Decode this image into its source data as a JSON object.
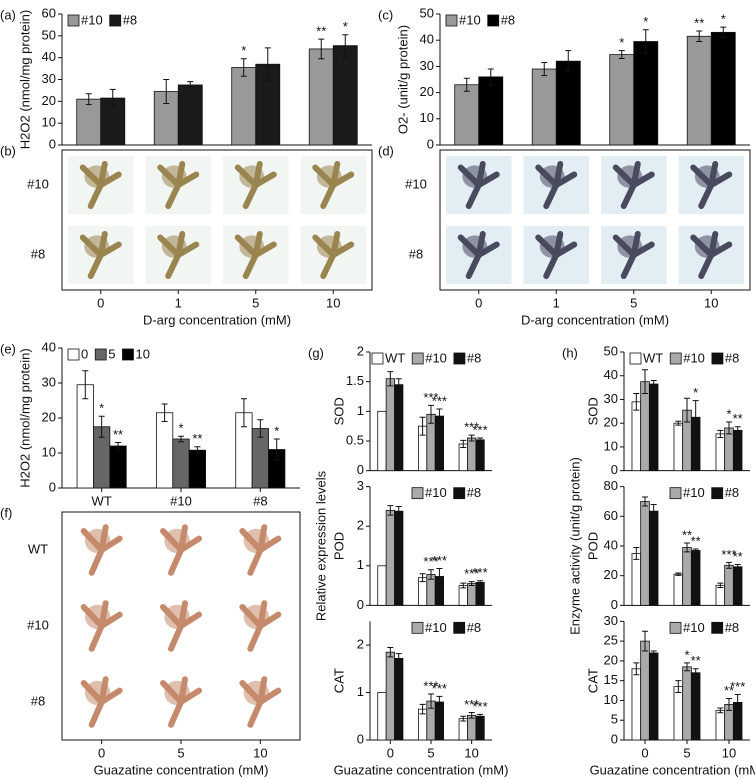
{
  "chart_data": [
    {
      "type": "bar",
      "panel": "(a)",
      "ylabel": "H2O2 (nmol/mg protein)",
      "categories": [
        "0",
        "1",
        "5",
        "10"
      ],
      "ylim": [
        0,
        60
      ],
      "yticks": [
        0,
        10,
        20,
        30,
        40,
        50,
        60
      ],
      "legend": true,
      "series": [
        {
          "name": "#10",
          "color": "#999999",
          "values": [
            21,
            24.5,
            35.5,
            44
          ],
          "errors": [
            2.5,
            5.5,
            4,
            4.5
          ],
          "significance": [
            null,
            null,
            "*",
            "**"
          ]
        },
        {
          "name": "#8",
          "color": "#1a1a1a",
          "values": [
            21.5,
            27.5,
            37,
            45.5
          ],
          "errors": [
            4,
            1.5,
            7.5,
            5
          ],
          "significance": [
            null,
            null,
            null,
            "*"
          ]
        }
      ]
    },
    {
      "type": "image-grid",
      "panel": "(b)",
      "rows": [
        "#10",
        "#8"
      ],
      "categories": [
        "0",
        "1",
        "5",
        "10"
      ],
      "xlabel": "D-arg concentration (mM)",
      "tile_color": "#f2f6f2",
      "plant_color": "#9a8550"
    },
    {
      "type": "bar",
      "panel": "(c)",
      "ylabel": "O2- (unit/g protein)",
      "categories": [
        "0",
        "1",
        "5",
        "10"
      ],
      "ylim": [
        0,
        50
      ],
      "yticks": [
        0,
        10,
        20,
        30,
        40,
        50
      ],
      "legend": true,
      "series": [
        {
          "name": "#10",
          "color": "#999999",
          "values": [
            23,
            29,
            34.5,
            41.5
          ],
          "errors": [
            2.5,
            2.5,
            1.5,
            2
          ],
          "significance": [
            null,
            null,
            "*",
            "**"
          ]
        },
        {
          "name": "#8",
          "color": "#000000",
          "values": [
            26,
            32,
            39.5,
            43
          ],
          "errors": [
            3,
            4,
            4.5,
            2
          ],
          "significance": [
            null,
            null,
            "*",
            "*"
          ]
        }
      ]
    },
    {
      "type": "image-grid",
      "panel": "(d)",
      "rows": [
        "#10",
        "#8"
      ],
      "categories": [
        "0",
        "1",
        "5",
        "10"
      ],
      "xlabel": "D-arg concentration (mM)",
      "tile_color": "#e2eef4",
      "plant_color": "#4a4a5e"
    },
    {
      "type": "bar",
      "panel": "(e)",
      "ylabel": "H2O2 (nmol/mg protein)",
      "categories": [
        "WT",
        "#10",
        "#8"
      ],
      "ylim": [
        0,
        40
      ],
      "yticks": [
        0,
        10,
        20,
        30,
        40
      ],
      "legend": true,
      "series": [
        {
          "name": "0",
          "color": "#ffffff",
          "values": [
            29.5,
            21.5,
            21.5
          ],
          "errors": [
            4,
            2.5,
            4
          ],
          "significance": [
            null,
            null,
            null
          ]
        },
        {
          "name": "5",
          "color": "#666666",
          "values": [
            17.5,
            14,
            17
          ],
          "errors": [
            3,
            0.8,
            2.5
          ],
          "significance": [
            "*",
            "*",
            null
          ]
        },
        {
          "name": "10",
          "color": "#000000",
          "values": [
            12,
            10.8,
            11
          ],
          "errors": [
            1,
            1,
            3
          ],
          "significance": [
            "**",
            "**",
            "*"
          ]
        }
      ]
    },
    {
      "type": "image-grid",
      "panel": "(f)",
      "rows": [
        "WT",
        "#10",
        "#8"
      ],
      "categories": [
        "0",
        "5",
        "10"
      ],
      "xlabel": "Guazatine concentration (mM)",
      "tile_color": "#ffffff",
      "plant_color": "#c58a6c"
    },
    {
      "type": "bar-panels",
      "panel": "(g)",
      "ylabel": "Relative expression levels",
      "xlabel": "Guazatine concentration (mM)",
      "categories": [
        "0",
        "5",
        "10"
      ],
      "series_names": [
        "WT",
        "#10",
        "#8"
      ],
      "colors": [
        "#ffffff",
        "#aaaaaa",
        "#111111"
      ],
      "subplots": [
        {
          "label": "SOD",
          "ylim": [
            0,
            2
          ],
          "yticks": [
            0,
            0.5,
            1,
            1.5,
            2
          ],
          "in_legend": [
            true,
            true,
            true
          ],
          "series": [
            {
              "values": [
                1,
                0.75,
                0.45
              ],
              "errors": [
                0,
                0.15,
                0.06
              ],
              "significance": [
                null,
                null,
                null
              ]
            },
            {
              "values": [
                1.55,
                0.95,
                0.55
              ],
              "errors": [
                0.12,
                0.15,
                0.05
              ],
              "significance": [
                null,
                "***",
                "***"
              ]
            },
            {
              "values": [
                1.45,
                0.92,
                0.52
              ],
              "errors": [
                0.1,
                0.12,
                0.03
              ],
              "significance": [
                null,
                "***",
                "***"
              ]
            }
          ]
        },
        {
          "label": "POD",
          "ylim": [
            0,
            3
          ],
          "yticks": [
            0,
            1,
            2,
            3
          ],
          "in_legend": [
            false,
            true,
            true
          ],
          "series": [
            {
              "values": [
                1,
                0.7,
                0.5
              ],
              "errors": [
                0,
                0.1,
                0.06
              ],
              "significance": [
                null,
                null,
                null
              ]
            },
            {
              "values": [
                2.4,
                0.78,
                0.55
              ],
              "errors": [
                0.12,
                0.12,
                0.05
              ],
              "significance": [
                null,
                "***",
                "***"
              ]
            },
            {
              "values": [
                2.38,
                0.73,
                0.58
              ],
              "errors": [
                0.12,
                0.2,
                0.04
              ],
              "significance": [
                null,
                "***",
                "***"
              ]
            }
          ]
        },
        {
          "label": "CAT",
          "ylim": [
            0,
            2.5
          ],
          "yticks": [
            0,
            1,
            2
          ],
          "in_legend": [
            false,
            true,
            true
          ],
          "series": [
            {
              "values": [
                1,
                0.65,
                0.45
              ],
              "errors": [
                0,
                0.1,
                0.05
              ],
              "significance": [
                null,
                null,
                null
              ]
            },
            {
              "values": [
                1.85,
                0.82,
                0.52
              ],
              "errors": [
                0.1,
                0.15,
                0.06
              ],
              "significance": [
                null,
                "***",
                "***"
              ]
            },
            {
              "values": [
                1.72,
                0.8,
                0.5
              ],
              "errors": [
                0.1,
                0.12,
                0.04
              ],
              "significance": [
                null,
                "***",
                "***"
              ]
            }
          ]
        }
      ]
    },
    {
      "type": "bar-panels",
      "panel": "(h)",
      "ylabel": "Enzyme activity (unit/g protein)",
      "xlabel": "Guazatine concentration (mM)",
      "categories": [
        "0",
        "5",
        "10"
      ],
      "series_names": [
        "WT",
        "#10",
        "#8"
      ],
      "colors": [
        "#ffffff",
        "#aaaaaa",
        "#111111"
      ],
      "subplots": [
        {
          "label": "SOD",
          "ylim": [
            0,
            50
          ],
          "yticks": [
            0,
            10,
            20,
            30,
            40,
            50
          ],
          "in_legend": [
            true,
            true,
            true
          ],
          "series": [
            {
              "values": [
                29,
                20,
                15.5
              ],
              "errors": [
                3.5,
                0.8,
                1.5
              ],
              "significance": [
                null,
                null,
                null
              ]
            },
            {
              "values": [
                37.5,
                25.5,
                18
              ],
              "errors": [
                5,
                5,
                2.5
              ],
              "significance": [
                null,
                null,
                "*"
              ]
            },
            {
              "values": [
                36.5,
                22.5,
                17
              ],
              "errors": [
                1.5,
                7,
                1.5
              ],
              "significance": [
                null,
                "*",
                "**"
              ]
            }
          ]
        },
        {
          "label": "POD",
          "ylim": [
            0,
            80
          ],
          "yticks": [
            0,
            20,
            40,
            60,
            80
          ],
          "in_legend": [
            false,
            true,
            true
          ],
          "series": [
            {
              "values": [
                35,
                21,
                13.5
              ],
              "errors": [
                4,
                0.8,
                1.5
              ],
              "significance": [
                null,
                null,
                null
              ]
            },
            {
              "values": [
                70,
                39,
                27
              ],
              "errors": [
                3,
                3,
                2
              ],
              "significance": [
                null,
                "**",
                "***"
              ]
            },
            {
              "values": [
                63.5,
                37,
                26
              ],
              "errors": [
                4.5,
                1,
                1.5
              ],
              "significance": [
                null,
                "**",
                "**"
              ]
            }
          ]
        },
        {
          "label": "CAT",
          "ylim": [
            0,
            30
          ],
          "yticks": [
            0,
            5,
            10,
            15,
            20,
            25,
            30
          ],
          "in_legend": [
            false,
            true,
            true
          ],
          "series": [
            {
              "values": [
                18,
                13.5,
                7.5
              ],
              "errors": [
                1.5,
                1.5,
                0.6
              ],
              "significance": [
                null,
                null,
                null
              ]
            },
            {
              "values": [
                25,
                18.5,
                9
              ],
              "errors": [
                2.5,
                1,
                1.5
              ],
              "significance": [
                null,
                "*",
                "**"
              ]
            },
            {
              "values": [
                22,
                17,
                9.5
              ],
              "errors": [
                0.5,
                1,
                2
              ],
              "significance": [
                null,
                "**",
                "***"
              ]
            }
          ]
        }
      ]
    }
  ]
}
